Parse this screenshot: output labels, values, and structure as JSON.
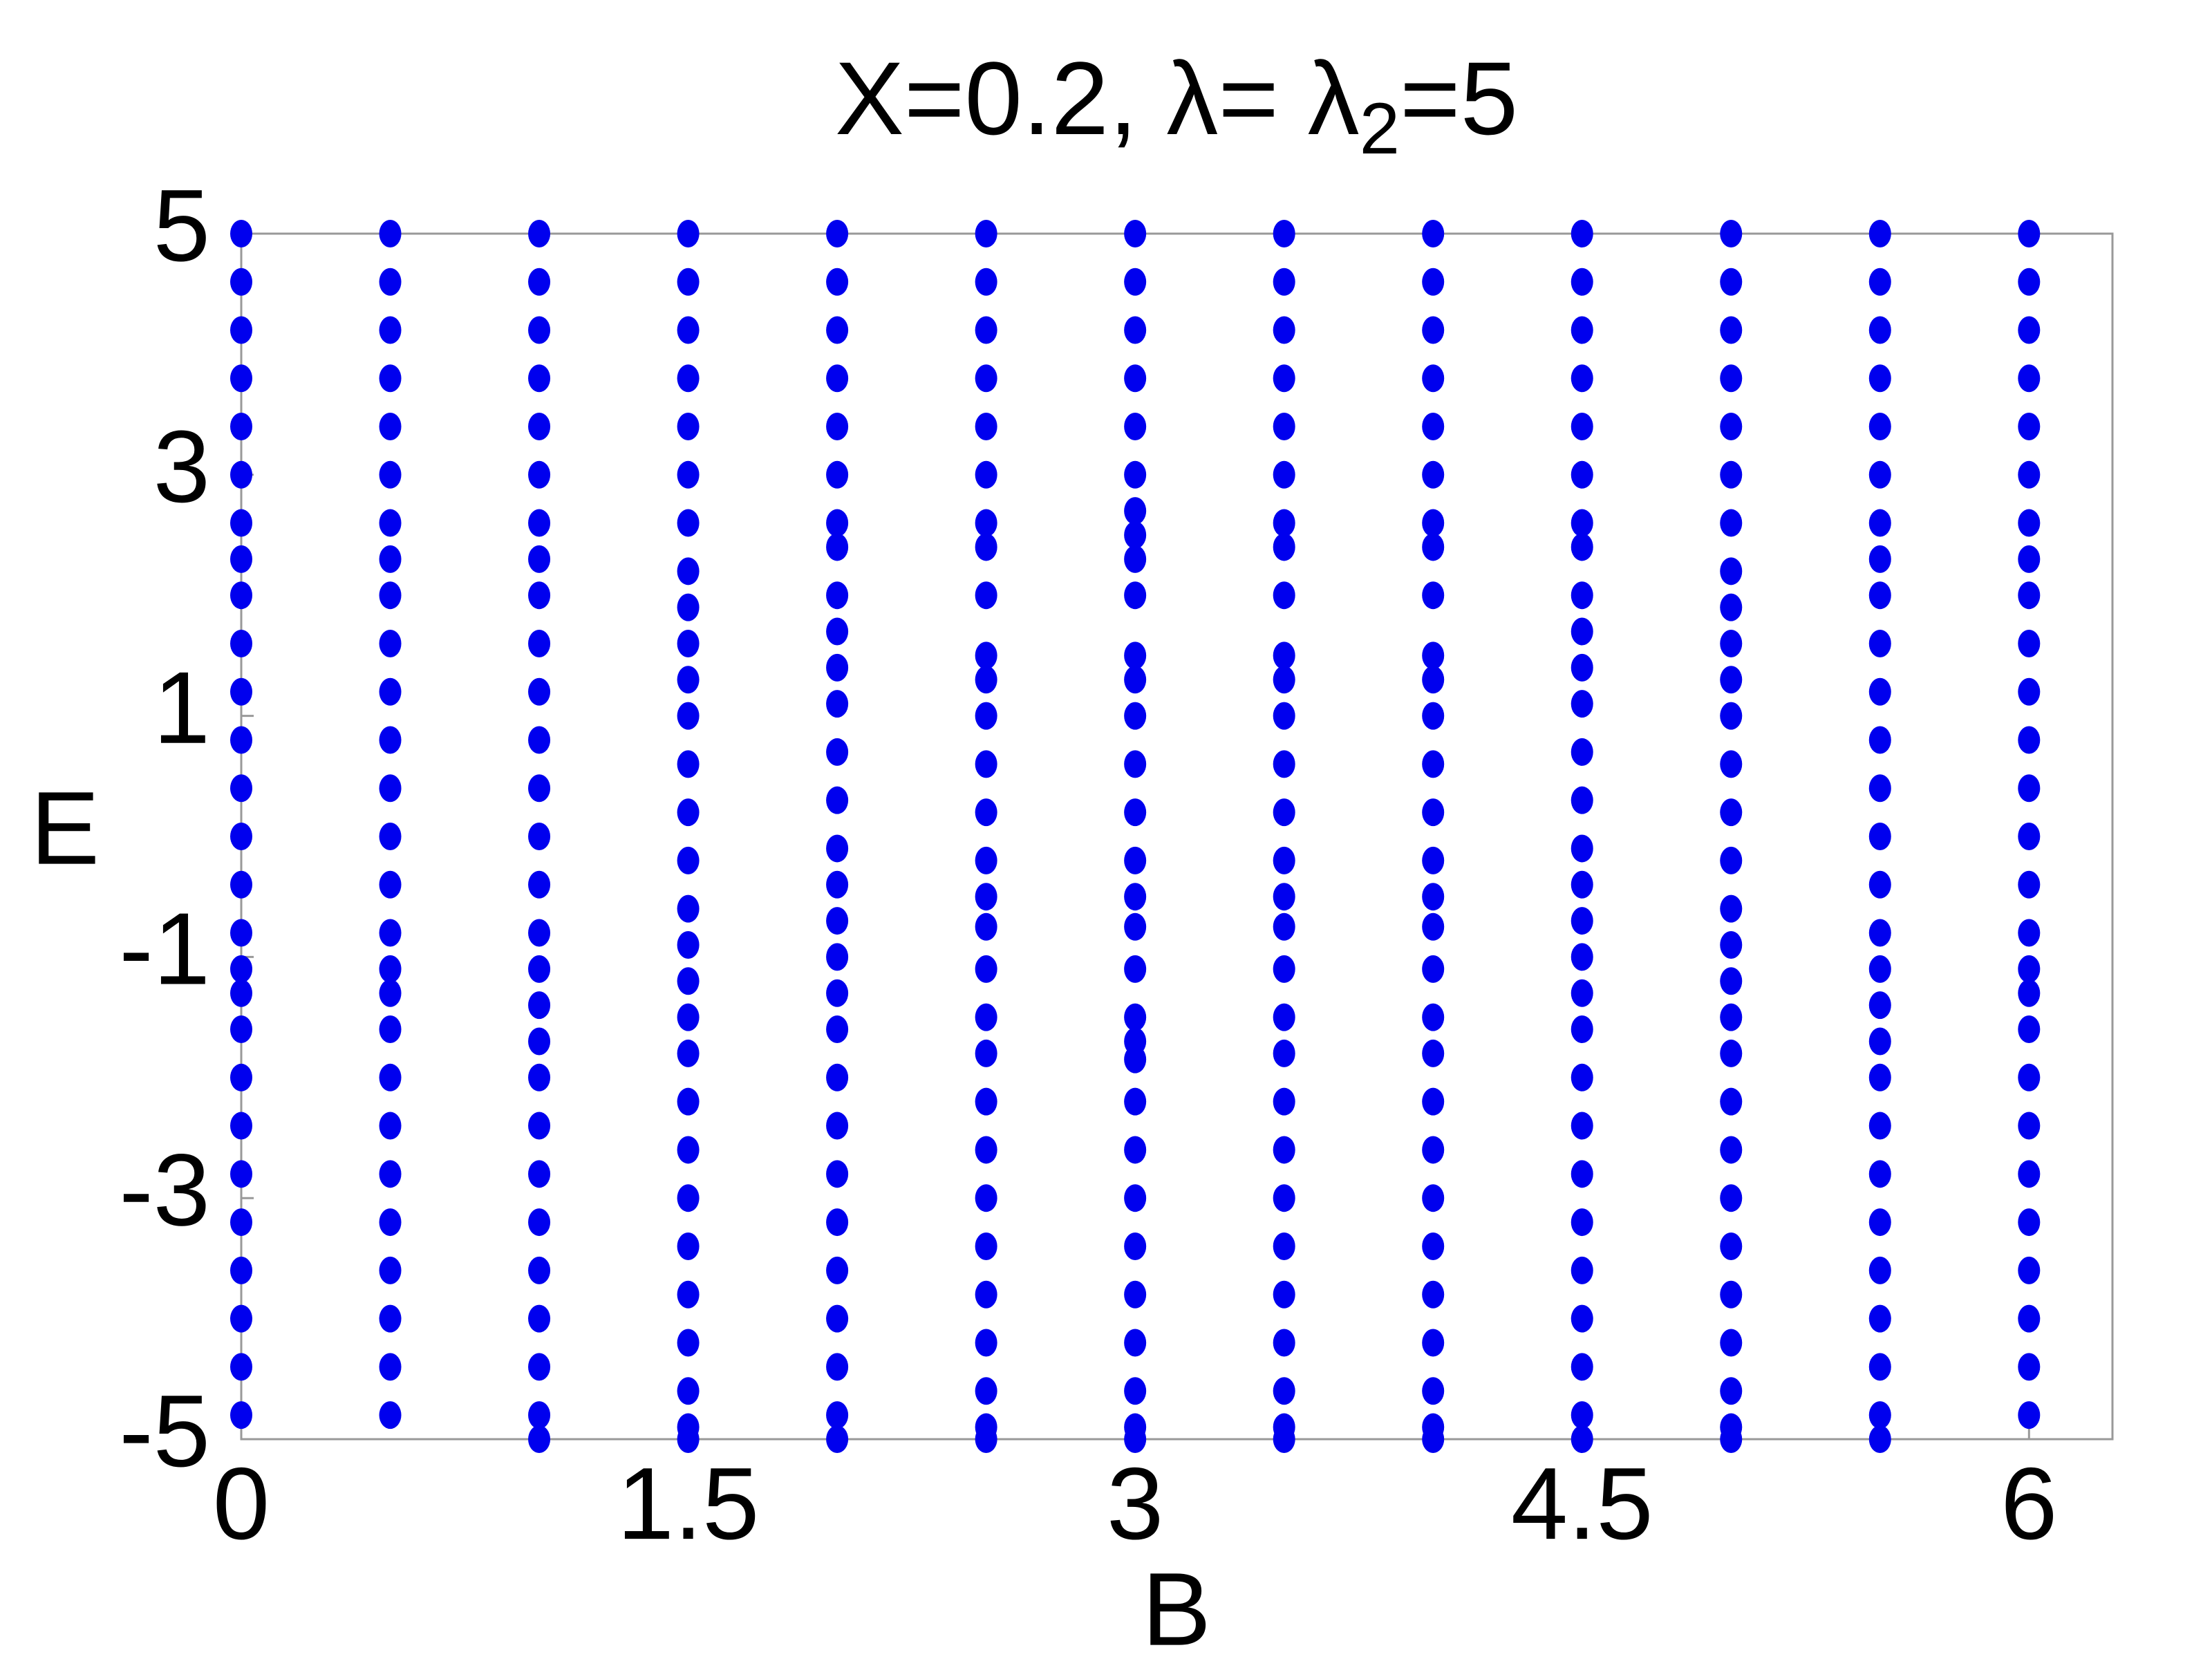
{
  "chart_data": {
    "type": "scatter",
    "title": "X=0.2, λ= λ",
    "title_subscript": "2",
    "title_suffix": "=5",
    "x_label": "B",
    "y_label": "E",
    "color": "#0000ee",
    "xlim": [
      0,
      6.28
    ],
    "ylim": [
      -5,
      5
    ],
    "xticks": [
      0,
      1.5,
      3,
      4.5,
      6
    ],
    "yticks": [
      5,
      3,
      1,
      -1,
      -3,
      -5
    ],
    "columns": [
      {
        "x": 0,
        "values": [
          5,
          4.6,
          4.2,
          3.8,
          3.4,
          3,
          2.6,
          2.3,
          2,
          1.6,
          1.2,
          0.8,
          0.4,
          0,
          -0.4,
          -0.8,
          -1.1,
          -1.3,
          -1.6,
          -2,
          -2.4,
          -2.8,
          -3.2,
          -3.6,
          -4,
          -4.4,
          -4.8
        ]
      },
      {
        "x": 0.5,
        "values": [
          5,
          4.6,
          4.2,
          3.8,
          3.4,
          3,
          2.6,
          2.3,
          2,
          1.6,
          1.2,
          0.8,
          0.4,
          0,
          -0.4,
          -0.8,
          -1.1,
          -1.3,
          -1.6,
          -2,
          -2.4,
          -2.8,
          -3.2,
          -3.6,
          -4,
          -4.4,
          -4.8
        ]
      },
      {
        "x": 1,
        "values": [
          5,
          4.6,
          4.2,
          3.8,
          3.4,
          3,
          2.6,
          2.3,
          2,
          1.6,
          1.2,
          0.8,
          0.4,
          0,
          -0.4,
          -0.8,
          -1.1,
          -1.4,
          -1.7,
          -2,
          -2.4,
          -2.8,
          -3.2,
          -3.6,
          -4,
          -4.4,
          -4.8,
          -5
        ]
      },
      {
        "x": 1.5,
        "values": [
          5,
          4.6,
          4.2,
          3.8,
          3.4,
          3,
          2.6,
          2.2,
          1.9,
          1.6,
          1.3,
          1,
          0.6,
          0.2,
          -0.2,
          -0.6,
          -0.9,
          -1.2,
          -1.5,
          -1.8,
          -2.2,
          -2.6,
          -3,
          -3.4,
          -3.8,
          -4.2,
          -4.6,
          -4.9,
          -5
        ]
      },
      {
        "x": 2,
        "values": [
          5,
          4.6,
          4.2,
          3.8,
          3.4,
          3,
          2.6,
          2.4,
          2,
          1.7,
          1.4,
          1.1,
          0.7,
          0.3,
          -0.1,
          -0.4,
          -0.7,
          -1,
          -1.3,
          -1.6,
          -2,
          -2.4,
          -2.8,
          -3.2,
          -3.6,
          -4,
          -4.4,
          -4.8,
          -5
        ]
      },
      {
        "x": 2.5,
        "values": [
          5,
          4.6,
          4.2,
          3.8,
          3.4,
          3,
          2.6,
          2.4,
          2,
          1.5,
          1.3,
          1,
          0.6,
          0.2,
          -0.2,
          -0.5,
          -0.75,
          -1.1,
          -1.5,
          -1.8,
          -2.2,
          -2.6,
          -3,
          -3.4,
          -3.8,
          -4.2,
          -4.6,
          -4.9,
          -5
        ]
      },
      {
        "x": 3,
        "values": [
          5,
          4.6,
          4.2,
          3.8,
          3.4,
          3,
          2.7,
          2.5,
          2.3,
          2,
          1.5,
          1.3,
          1,
          0.6,
          0.2,
          -0.2,
          -0.5,
          -0.75,
          -1.1,
          -1.5,
          -1.7,
          -1.85,
          -2.2,
          -2.6,
          -3,
          -3.4,
          -3.8,
          -4.2,
          -4.6,
          -4.9,
          -5
        ]
      },
      {
        "x": 3.5,
        "values": [
          5,
          4.6,
          4.2,
          3.8,
          3.4,
          3,
          2.6,
          2.4,
          2,
          1.5,
          1.3,
          1,
          0.6,
          0.2,
          -0.2,
          -0.5,
          -0.75,
          -1.1,
          -1.5,
          -1.8,
          -2.2,
          -2.6,
          -3,
          -3.4,
          -3.8,
          -4.2,
          -4.6,
          -4.9,
          -5
        ]
      },
      {
        "x": 4,
        "values": [
          5,
          4.6,
          4.2,
          3.8,
          3.4,
          3,
          2.6,
          2.4,
          2,
          1.5,
          1.3,
          1,
          0.6,
          0.2,
          -0.2,
          -0.5,
          -0.75,
          -1.1,
          -1.5,
          -1.8,
          -2.2,
          -2.6,
          -3,
          -3.4,
          -3.8,
          -4.2,
          -4.6,
          -4.9,
          -5
        ]
      },
      {
        "x": 4.5,
        "values": [
          5,
          4.6,
          4.2,
          3.8,
          3.4,
          3,
          2.6,
          2.4,
          2,
          1.7,
          1.4,
          1.1,
          0.7,
          0.3,
          -0.1,
          -0.4,
          -0.7,
          -1,
          -1.3,
          -1.6,
          -2,
          -2.4,
          -2.8,
          -3.2,
          -3.6,
          -4,
          -4.4,
          -4.8,
          -5
        ]
      },
      {
        "x": 5,
        "values": [
          5,
          4.6,
          4.2,
          3.8,
          3.4,
          3,
          2.6,
          2.2,
          1.9,
          1.6,
          1.3,
          1,
          0.6,
          0.2,
          -0.2,
          -0.6,
          -0.9,
          -1.2,
          -1.5,
          -1.8,
          -2.2,
          -2.6,
          -3,
          -3.4,
          -3.8,
          -4.2,
          -4.6,
          -4.9,
          -5
        ]
      },
      {
        "x": 5.5,
        "values": [
          5,
          4.6,
          4.2,
          3.8,
          3.4,
          3,
          2.6,
          2.3,
          2,
          1.6,
          1.2,
          0.8,
          0.4,
          0,
          -0.4,
          -0.8,
          -1.1,
          -1.4,
          -1.7,
          -2,
          -2.4,
          -2.8,
          -3.2,
          -3.6,
          -4,
          -4.4,
          -4.8,
          -5
        ]
      },
      {
        "x": 6,
        "values": [
          5,
          4.6,
          4.2,
          3.8,
          3.4,
          3,
          2.6,
          2.3,
          2,
          1.6,
          1.2,
          0.8,
          0.4,
          0,
          -0.4,
          -0.8,
          -1.1,
          -1.3,
          -1.6,
          -2,
          -2.4,
          -2.8,
          -3.2,
          -3.6,
          -4,
          -4.4,
          -4.8
        ]
      }
    ]
  }
}
